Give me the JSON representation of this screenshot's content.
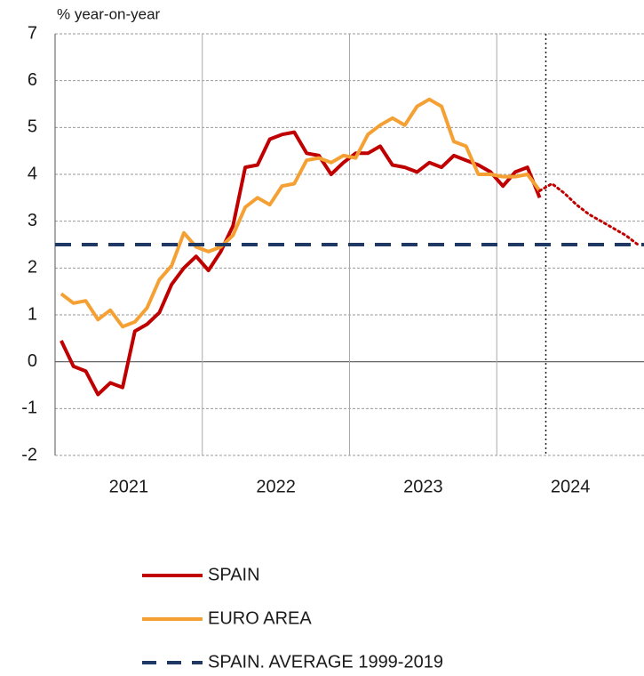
{
  "chart_data": {
    "type": "line",
    "y_label": "% year-on-year",
    "categories": [
      null,
      null,
      null,
      null,
      null,
      null,
      "2021",
      null,
      null,
      null,
      null,
      null,
      null,
      null,
      null,
      null,
      null,
      null,
      "2022",
      null,
      null,
      null,
      null,
      null,
      null,
      null,
      null,
      null,
      null,
      null,
      "2023",
      null,
      null,
      null,
      null,
      null,
      null,
      null,
      null,
      null,
      null,
      null,
      "2024",
      null,
      null,
      null,
      null,
      null
    ],
    "ylim": [
      -2,
      7
    ],
    "yticks": [
      -2,
      -1,
      0,
      1,
      2,
      3,
      4,
      5,
      6,
      7
    ],
    "grid": true,
    "series": [
      {
        "name": "SPAIN",
        "color": "#c00000",
        "style": "solid",
        "values": [
          0.45,
          -0.1,
          -0.2,
          -0.7,
          -0.45,
          -0.55,
          0.65,
          0.8,
          1.05,
          1.65,
          2.0,
          2.25,
          1.95,
          2.35,
          2.9,
          4.15,
          4.2,
          4.75,
          4.85,
          4.9,
          4.45,
          4.4,
          4.0,
          4.25,
          4.45,
          4.45,
          4.6,
          4.2,
          4.15,
          4.05,
          4.25,
          4.15,
          4.4,
          4.3,
          4.2,
          4.05,
          3.75,
          4.05,
          4.15,
          3.5,
          null,
          null,
          null,
          null,
          null,
          null,
          null,
          null
        ]
      },
      {
        "name": "EURO AREA",
        "color": "#f5a033",
        "style": "solid",
        "values": [
          1.45,
          1.25,
          1.3,
          0.9,
          1.1,
          0.75,
          0.85,
          1.15,
          1.75,
          2.05,
          2.75,
          2.45,
          2.35,
          2.45,
          2.7,
          3.3,
          3.5,
          3.35,
          3.75,
          3.8,
          4.3,
          4.35,
          4.25,
          4.4,
          4.35,
          4.85,
          5.05,
          5.2,
          5.05,
          5.45,
          5.6,
          5.45,
          4.7,
          4.6,
          4.0,
          4.0,
          3.95,
          3.95,
          4.0,
          3.65,
          null,
          null,
          null,
          null,
          null,
          null,
          null,
          null
        ]
      },
      {
        "color": "#c00000",
        "style": "dotted",
        "values": [
          null,
          null,
          null,
          null,
          null,
          null,
          null,
          null,
          null,
          null,
          null,
          null,
          null,
          null,
          null,
          null,
          null,
          null,
          null,
          null,
          null,
          null,
          null,
          null,
          null,
          null,
          null,
          null,
          null,
          null,
          null,
          null,
          null,
          null,
          null,
          null,
          null,
          null,
          null,
          3.65,
          3.8,
          3.6,
          3.35,
          3.15,
          3.0,
          2.85,
          2.7,
          2.5
        ]
      },
      {
        "name": "SPAIN. AVERAGE 1999-2019",
        "color": "#1f3864",
        "style": "dashed",
        "hline": 2.5
      }
    ]
  }
}
